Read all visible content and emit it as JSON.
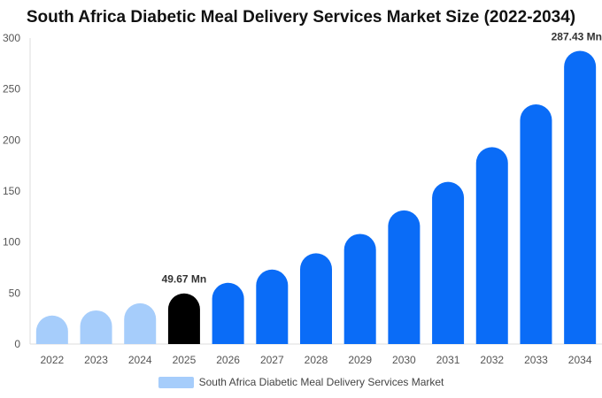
{
  "title": "South Africa Diabetic Meal Delivery Services Market Size (2022-2034)",
  "chart_data": {
    "type": "bar",
    "categories": [
      "2022",
      "2023",
      "2024",
      "2025",
      "2026",
      "2027",
      "2028",
      "2029",
      "2030",
      "2031",
      "2032",
      "2033",
      "2034"
    ],
    "series": [
      {
        "name": "South Africa Diabetic Meal Delivery Services Market",
        "values": [
          28,
          33,
          40,
          49.67,
          60,
          73,
          89,
          108,
          131,
          159,
          193,
          235,
          287.43
        ]
      }
    ],
    "data_labels": [
      {
        "category": "2025",
        "text": "49.67 Mn"
      },
      {
        "category": "2034",
        "text": "287.43 Mn"
      }
    ],
    "yticks": [
      0,
      50,
      100,
      150,
      200,
      250,
      300
    ],
    "ylim": [
      0,
      300
    ],
    "grid": false,
    "legend_position": "bottom",
    "colors": {
      "historical": "#a6cdfb",
      "current": "#000000",
      "forecast": "#0a6cf7",
      "axis_text": "#555555"
    },
    "historical_count": 3,
    "current_index": 3
  }
}
